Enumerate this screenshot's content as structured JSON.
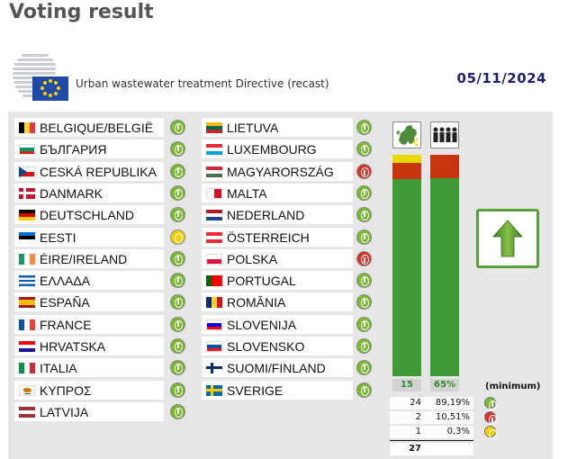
{
  "page": {
    "title": "Voting result",
    "subject": "Urban wastewater treatment Directive (recast)",
    "date": "05/11/2024"
  },
  "countries": [
    {
      "name": "BELGIQUE/BELGIË",
      "vote": "yes",
      "flag": [
        "#000000",
        "#fdda24",
        "#ef3340"
      ],
      "flag_dir": "v"
    },
    {
      "name": "БЪЛГАРИЯ",
      "vote": "yes",
      "flag": [
        "#ffffff",
        "#00966e",
        "#d62612"
      ],
      "flag_dir": "h"
    },
    {
      "name": "CESKÁ REPUBLIKA",
      "vote": "yes",
      "flag": [
        "#ffffff",
        "#d7141a"
      ],
      "flag_dir": "h",
      "flag_extra": "cz"
    },
    {
      "name": "DANMARK",
      "vote": "yes",
      "flag": [
        "#c8102e"
      ],
      "flag_dir": "h",
      "flag_extra": "nordic",
      "cross": "#ffffff"
    },
    {
      "name": "DEUTSCHLAND",
      "vote": "yes",
      "flag": [
        "#000000",
        "#dd0000",
        "#ffce00"
      ],
      "flag_dir": "h"
    },
    {
      "name": "EESTI",
      "vote": "abs",
      "flag": [
        "#0072ce",
        "#000000",
        "#ffffff"
      ],
      "flag_dir": "h"
    },
    {
      "name": "ÉIRE/IRELAND",
      "vote": "yes",
      "flag": [
        "#169b62",
        "#ffffff",
        "#ff883e"
      ],
      "flag_dir": "v"
    },
    {
      "name": "ΕΛΛΑΔΑ",
      "vote": "yes",
      "flag": [
        "#0d5eaf",
        "#ffffff",
        "#0d5eaf",
        "#ffffff",
        "#0d5eaf"
      ],
      "flag_dir": "h"
    },
    {
      "name": "ESPAÑA",
      "vote": "yes",
      "flag": [
        "#aa151b",
        "#f1bf00",
        "#f1bf00",
        "#aa151b"
      ],
      "flag_dir": "h"
    },
    {
      "name": "FRANCE",
      "vote": "yes",
      "flag": [
        "#0055a4",
        "#ffffff",
        "#ef4135"
      ],
      "flag_dir": "v"
    },
    {
      "name": "HRVATSKA",
      "vote": "yes",
      "flag": [
        "#ff0000",
        "#ffffff",
        "#171796"
      ],
      "flag_dir": "h"
    },
    {
      "name": "ITALIA",
      "vote": "yes",
      "flag": [
        "#009246",
        "#ffffff",
        "#ce2b37"
      ],
      "flag_dir": "v"
    },
    {
      "name": "ΚΥΠΡΟΣ",
      "vote": "yes",
      "flag": [
        "#ffffff"
      ],
      "flag_dir": "h",
      "flag_extra": "cy"
    },
    {
      "name": "LATVIJA",
      "vote": "yes",
      "flag": [
        "#9e3039",
        "#ffffff",
        "#9e3039"
      ],
      "flag_dir": "h"
    },
    {
      "name": "LIETUVA",
      "vote": "yes",
      "flag": [
        "#fdb913",
        "#006a44",
        "#c1272d"
      ],
      "flag_dir": "h"
    },
    {
      "name": "LUXEMBOURG",
      "vote": "yes",
      "flag": [
        "#ed2939",
        "#ffffff",
        "#00a1de"
      ],
      "flag_dir": "h"
    },
    {
      "name": "MAGYARORSZÁG",
      "vote": "no",
      "flag": [
        "#ce2939",
        "#ffffff",
        "#477050"
      ],
      "flag_dir": "h"
    },
    {
      "name": "MALTA",
      "vote": "yes",
      "flag": [
        "#ffffff",
        "#cf142b"
      ],
      "flag_dir": "v"
    },
    {
      "name": "NEDERLAND",
      "vote": "yes",
      "flag": [
        "#ae1c28",
        "#ffffff",
        "#21468b"
      ],
      "flag_dir": "h"
    },
    {
      "name": "ÖSTERREICH",
      "vote": "yes",
      "flag": [
        "#ed2939",
        "#ffffff",
        "#ed2939"
      ],
      "flag_dir": "h"
    },
    {
      "name": "POLSKA",
      "vote": "no",
      "flag": [
        "#ffffff",
        "#dc143c"
      ],
      "flag_dir": "h"
    },
    {
      "name": "PORTUGAL",
      "vote": "yes",
      "flag": [
        "#006600",
        "#ff0000",
        "#ff0000"
      ],
      "flag_dir": "v"
    },
    {
      "name": "ROMÂNIA",
      "vote": "yes",
      "flag": [
        "#002b7f",
        "#fcd116",
        "#ce1126"
      ],
      "flag_dir": "v"
    },
    {
      "name": "SLOVENIJA",
      "vote": "yes",
      "flag": [
        "#ffffff",
        "#0000ff",
        "#ff0000"
      ],
      "flag_dir": "h"
    },
    {
      "name": "SLOVENSKO",
      "vote": "yes",
      "flag": [
        "#ffffff",
        "#0b4ea2",
        "#ee1c25"
      ],
      "flag_dir": "h"
    },
    {
      "name": "SUOMI/FINLAND",
      "vote": "yes",
      "flag": [
        "#ffffff"
      ],
      "flag_dir": "h",
      "flag_extra": "nordic",
      "cross": "#002f6c"
    },
    {
      "name": "SVERIGE",
      "vote": "yes",
      "flag": [
        "#006aa7"
      ],
      "flag_dir": "h",
      "flag_extra": "nordic",
      "cross": "#fecc00"
    }
  ],
  "member_states_bar": {
    "label": "15",
    "icon": "eu-map-icon",
    "segments": [
      {
        "vote": "abs",
        "fraction": 0.037,
        "color": "#e8d800"
      },
      {
        "vote": "no",
        "fraction": 0.074,
        "color": "#c8340e"
      },
      {
        "vote": "yes",
        "fraction": 0.889,
        "color": "#3d9a35"
      }
    ]
  },
  "population_bar": {
    "label": "65%",
    "icon": "population-icon",
    "segments": [
      {
        "vote": "no",
        "fraction": 0.105,
        "color": "#c8340e"
      },
      {
        "vote": "yes",
        "fraction": 0.895,
        "color": "#3d9a35"
      }
    ]
  },
  "minimum_label": "(minimum)",
  "summary": [
    {
      "count": "24",
      "percent": "89,19%",
      "vote": "yes"
    },
    {
      "count": "2",
      "percent": "10,51%",
      "vote": "no"
    },
    {
      "count": "1",
      "percent": "0,3%",
      "vote": "abs"
    }
  ],
  "total": "27",
  "result_icon": "approved-arrow-icon",
  "colors": {
    "yes": "#7ab82e",
    "no": "#d8312b",
    "abs": "#f2d000",
    "result": "#5aa03a"
  }
}
